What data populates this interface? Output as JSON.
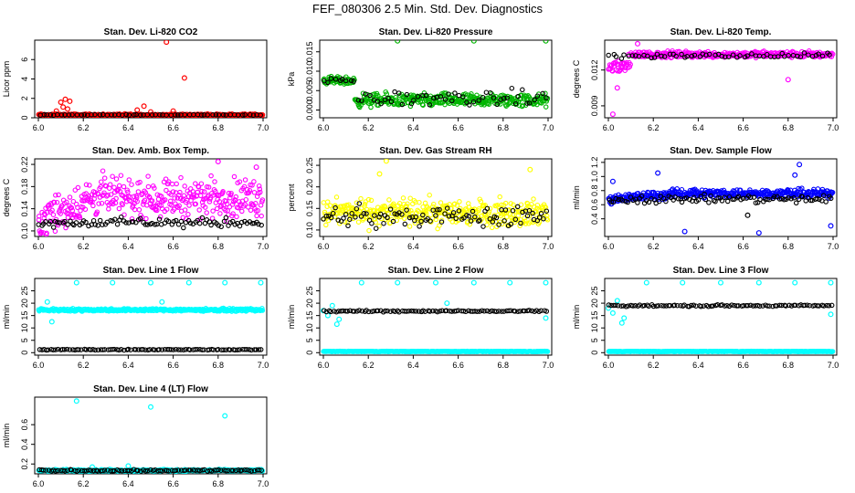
{
  "page": {
    "title": "FEF_080306  2.5 Min. Std. Dev. Diagnostics"
  },
  "chart_data": [
    {
      "type": "scatter",
      "title": "Stan. Dev. Li-820 CO2",
      "ylabel": "Licor ppm",
      "xlim": [
        6.0,
        7.0
      ],
      "ylim": [
        0,
        8
      ],
      "x_ticks": [
        "6.0",
        "6.2",
        "6.4",
        "6.6",
        "6.8",
        "7.0"
      ],
      "y_ticks": [
        {
          "v": 0,
          "label": "0"
        },
        {
          "v": 2,
          "label": "2"
        },
        {
          "v": 4,
          "label": "4"
        },
        {
          "v": 6,
          "label": "6"
        }
      ],
      "series": [
        {
          "name": "red",
          "color": "#ff0000",
          "base": 0.3,
          "noise": 0.15,
          "density": "dense",
          "spikes": [
            {
              "x": 6.1,
              "y": 1.6
            },
            {
              "x": 6.12,
              "y": 1.9
            },
            {
              "x": 6.14,
              "y": 1.7
            },
            {
              "x": 6.11,
              "y": 1.1
            },
            {
              "x": 6.13,
              "y": 0.9
            },
            {
              "x": 6.08,
              "y": 0.7
            },
            {
              "x": 6.47,
              "y": 1.2
            },
            {
              "x": 6.44,
              "y": 0.8
            },
            {
              "x": 6.5,
              "y": 0.6
            },
            {
              "x": 6.57,
              "y": 7.8
            },
            {
              "x": 6.65,
              "y": 4.1
            },
            {
              "x": 6.6,
              "y": 0.7
            }
          ]
        },
        {
          "name": "black",
          "color": "#000000",
          "base": 0.3,
          "noise": 0.05,
          "density": "sparse",
          "spikes": []
        }
      ]
    },
    {
      "type": "scatter",
      "title": "Stan. Dev. Li-820 Pressure",
      "ylabel": "kPa",
      "xlim": [
        6.0,
        7.0
      ],
      "ylim": [
        -0.002,
        0.018
      ],
      "x_ticks": [
        "6.0",
        "6.2",
        "6.4",
        "6.6",
        "6.8",
        "7.0"
      ],
      "y_ticks": [
        {
          "v": 0.0,
          "label": "0.000"
        },
        {
          "v": 0.005,
          "label": "0.005"
        },
        {
          "v": 0.01,
          "label": "0.010"
        },
        {
          "v": 0.015,
          "label": "0.015"
        }
      ],
      "series": [
        {
          "name": "green",
          "color": "#00b400",
          "base": 0.0025,
          "noise": 0.0025,
          "density": "dense",
          "step": {
            "before": 6.14,
            "value": 0.0075,
            "noise": 0.0015
          },
          "spikes": [
            {
              "x": 6.33,
              "y": 0.0178
            },
            {
              "x": 6.67,
              "y": 0.0178
            },
            {
              "x": 6.99,
              "y": 0.0178
            }
          ]
        },
        {
          "name": "black",
          "color": "#000000",
          "base": 0.003,
          "noise": 0.003,
          "density": "sparse",
          "step": {
            "before": 6.14,
            "value": 0.0075,
            "noise": 0.001
          },
          "spikes": []
        }
      ]
    },
    {
      "type": "scatter",
      "title": "Stan. Dev. Li-820 Temp.",
      "ylabel": "degrees C",
      "xlim": [
        6.0,
        7.0
      ],
      "ylim": [
        0.008,
        0.0145
      ],
      "x_ticks": [
        "6.0",
        "6.2",
        "6.4",
        "6.6",
        "6.8",
        "7.0"
      ],
      "y_ticks": [
        {
          "v": 0.009,
          "label": "0.009"
        },
        {
          "v": 0.012,
          "label": "0.012"
        }
      ],
      "series": [
        {
          "name": "magenta",
          "color": "#ff00ff",
          "base": 0.0133,
          "noise": 0.0004,
          "density": "dense",
          "step": {
            "before": 6.1,
            "value": 0.0123,
            "noise": 0.0012
          },
          "spikes": [
            {
              "x": 6.02,
              "y": 0.0083
            },
            {
              "x": 6.13,
              "y": 0.0142
            },
            {
              "x": 6.8,
              "y": 0.0112
            },
            {
              "x": 6.04,
              "y": 0.0105
            }
          ]
        },
        {
          "name": "black",
          "color": "#000000",
          "base": 0.0132,
          "noise": 0.0003,
          "density": "sparse",
          "spikes": []
        }
      ]
    },
    {
      "type": "scatter",
      "title": "Stan. Dev. Amb. Box Temp.",
      "ylabel": "degrees C",
      "xlim": [
        6.0,
        7.0
      ],
      "ylim": [
        0.09,
        0.23
      ],
      "x_ticks": [
        "6.0",
        "6.2",
        "6.4",
        "6.6",
        "6.8",
        "7.0"
      ],
      "y_ticks": [
        {
          "v": 0.1,
          "label": "0.10"
        },
        {
          "v": 0.14,
          "label": "0.14"
        },
        {
          "v": 0.18,
          "label": "0.18"
        },
        {
          "v": 0.22,
          "label": "0.22"
        }
      ],
      "series": [
        {
          "name": "magenta",
          "color": "#ff00ff",
          "base": 0.16,
          "noise": 0.05,
          "density": "dense",
          "ramp": {
            "from": 0.12,
            "to": 0.17,
            "until": 6.3
          },
          "spikes": [
            {
              "x": 6.8,
              "y": 0.225
            },
            {
              "x": 6.97,
              "y": 0.215
            }
          ]
        },
        {
          "name": "black",
          "color": "#000000",
          "base": 0.115,
          "noise": 0.012,
          "density": "medium",
          "spikes": []
        }
      ]
    },
    {
      "type": "scatter",
      "title": "Stan. Dev. Gas Stream RH",
      "ylabel": "percent",
      "xlim": [
        6.0,
        7.0
      ],
      "ylim": [
        0.085,
        0.265
      ],
      "x_ticks": [
        "6.0",
        "6.2",
        "6.4",
        "6.6",
        "6.8",
        "7.0"
      ],
      "y_ticks": [
        {
          "v": 0.1,
          "label": "0.10"
        },
        {
          "v": 0.15,
          "label": "0.15"
        },
        {
          "v": 0.2,
          "label": "0.20"
        },
        {
          "v": 0.25,
          "label": "0.25"
        }
      ],
      "series": [
        {
          "name": "yellow",
          "color": "#ffff00",
          "base": 0.14,
          "noise": 0.045,
          "density": "dense",
          "spikes": [
            {
              "x": 6.28,
              "y": 0.26
            },
            {
              "x": 6.92,
              "y": 0.24
            },
            {
              "x": 6.25,
              "y": 0.23
            }
          ]
        },
        {
          "name": "black",
          "color": "#000000",
          "base": 0.13,
          "noise": 0.035,
          "density": "medium",
          "spikes": []
        }
      ]
    },
    {
      "type": "scatter",
      "title": "Stan. Dev. Sample Flow",
      "ylabel": "ml/min",
      "xlim": [
        6.0,
        7.0
      ],
      "ylim": [
        0.15,
        1.25
      ],
      "x_ticks": [
        "6.0",
        "6.2",
        "6.4",
        "6.6",
        "6.8",
        "7.0"
      ],
      "y_ticks": [
        {
          "v": 0.4,
          "label": "0.4"
        },
        {
          "v": 0.6,
          "label": "0.6"
        },
        {
          "v": 0.8,
          "label": "0.8"
        },
        {
          "v": 1.0,
          "label": "1.0"
        },
        {
          "v": 1.2,
          "label": "1.2"
        }
      ],
      "series": [
        {
          "name": "blue",
          "color": "#0000ff",
          "base": 0.76,
          "noise": 0.09,
          "density": "dense",
          "ramp": {
            "from": 0.68,
            "to": 0.78,
            "until": 6.4
          },
          "spikes": [
            {
              "x": 6.02,
              "y": 0.93
            },
            {
              "x": 6.22,
              "y": 1.05
            },
            {
              "x": 6.85,
              "y": 1.17
            },
            {
              "x": 6.34,
              "y": 0.22
            },
            {
              "x": 6.67,
              "y": 0.2
            },
            {
              "x": 6.99,
              "y": 0.3
            },
            {
              "x": 6.83,
              "y": 1.02
            }
          ]
        },
        {
          "name": "black",
          "color": "#000000",
          "base": 0.68,
          "noise": 0.09,
          "density": "medium",
          "spikes": [
            {
              "x": 6.62,
              "y": 0.45
            }
          ]
        }
      ]
    },
    {
      "type": "scatter",
      "title": "Stan. Dev. Line 1 Flow",
      "ylabel": "ml/min",
      "xlim": [
        6.0,
        7.0
      ],
      "ylim": [
        -1,
        30
      ],
      "x_ticks": [
        "6.0",
        "6.2",
        "6.4",
        "6.6",
        "6.8",
        "7.0"
      ],
      "y_ticks": [
        {
          "v": 0,
          "label": "0"
        },
        {
          "v": 5,
          "label": "5"
        },
        {
          "v": 10,
          "label": "10"
        },
        {
          "v": 15,
          "label": "15"
        },
        {
          "v": 20,
          "label": "20"
        },
        {
          "v": 25,
          "label": "25"
        }
      ],
      "series": [
        {
          "name": "cyan",
          "color": "#00ffff",
          "base": 17.3,
          "noise": 0.8,
          "density": "dense",
          "spikes": [
            {
              "x": 6.04,
              "y": 20.5
            },
            {
              "x": 6.06,
              "y": 12.5
            },
            {
              "x": 6.17,
              "y": 28.3
            },
            {
              "x": 6.33,
              "y": 28.3
            },
            {
              "x": 6.5,
              "y": 28.3
            },
            {
              "x": 6.67,
              "y": 28.3
            },
            {
              "x": 6.83,
              "y": 28.3
            },
            {
              "x": 6.99,
              "y": 28.3
            },
            {
              "x": 6.55,
              "y": 20.5
            }
          ]
        },
        {
          "name": "black",
          "color": "#000000",
          "base": 1.2,
          "noise": 0.25,
          "density": "medium",
          "spikes": []
        }
      ]
    },
    {
      "type": "scatter",
      "title": "Stan. Dev. Line 2 Flow",
      "ylabel": "ml/min",
      "xlim": [
        6.0,
        7.0
      ],
      "ylim": [
        -1,
        30
      ],
      "x_ticks": [
        "6.0",
        "6.2",
        "6.4",
        "6.6",
        "6.8",
        "7.0"
      ],
      "y_ticks": [
        {
          "v": 0,
          "label": "0"
        },
        {
          "v": 5,
          "label": "5"
        },
        {
          "v": 10,
          "label": "10"
        },
        {
          "v": 15,
          "label": "15"
        },
        {
          "v": 20,
          "label": "20"
        },
        {
          "v": 25,
          "label": "25"
        }
      ],
      "series": [
        {
          "name": "cyan-low",
          "color": "#00ffff",
          "base": 0.5,
          "noise": 0.15,
          "density": "dense",
          "spikes": [
            {
              "x": 6.0,
              "y": 17.0
            },
            {
              "x": 6.02,
              "y": 15.0
            },
            {
              "x": 6.04,
              "y": 19.0
            },
            {
              "x": 6.06,
              "y": 11.5
            },
            {
              "x": 6.07,
              "y": 13.5
            },
            {
              "x": 6.17,
              "y": 28.3
            },
            {
              "x": 6.33,
              "y": 28.3
            },
            {
              "x": 6.5,
              "y": 28.3
            },
            {
              "x": 6.67,
              "y": 28.3
            },
            {
              "x": 6.83,
              "y": 28.3
            },
            {
              "x": 6.99,
              "y": 28.3
            },
            {
              "x": 6.55,
              "y": 20.0
            },
            {
              "x": 6.99,
              "y": 14.0
            }
          ]
        },
        {
          "name": "black",
          "color": "#000000",
          "base": 16.8,
          "noise": 0.5,
          "density": "medium",
          "spikes": []
        }
      ]
    },
    {
      "type": "scatter",
      "title": "Stan. Dev. Line 3 Flow",
      "ylabel": "ml/min",
      "xlim": [
        6.0,
        7.0
      ],
      "ylim": [
        -1,
        30
      ],
      "x_ticks": [
        "6.0",
        "6.2",
        "6.4",
        "6.6",
        "6.8",
        "7.0"
      ],
      "y_ticks": [
        {
          "v": 0,
          "label": "0"
        },
        {
          "v": 5,
          "label": "5"
        },
        {
          "v": 10,
          "label": "10"
        },
        {
          "v": 15,
          "label": "15"
        },
        {
          "v": 20,
          "label": "20"
        },
        {
          "v": 25,
          "label": "25"
        }
      ],
      "series": [
        {
          "name": "cyan-low",
          "color": "#00ffff",
          "base": 0.5,
          "noise": 0.15,
          "density": "dense",
          "spikes": [
            {
              "x": 6.0,
              "y": 18.0
            },
            {
              "x": 6.02,
              "y": 16.0
            },
            {
              "x": 6.04,
              "y": 21.0
            },
            {
              "x": 6.06,
              "y": 12.0
            },
            {
              "x": 6.07,
              "y": 14.0
            },
            {
              "x": 6.17,
              "y": 28.3
            },
            {
              "x": 6.33,
              "y": 28.3
            },
            {
              "x": 6.5,
              "y": 28.3
            },
            {
              "x": 6.67,
              "y": 28.3
            },
            {
              "x": 6.83,
              "y": 28.3
            },
            {
              "x": 6.99,
              "y": 28.3
            },
            {
              "x": 6.99,
              "y": 15.5
            }
          ]
        },
        {
          "name": "black",
          "color": "#000000",
          "base": 19.0,
          "noise": 0.5,
          "density": "medium",
          "spikes": []
        }
      ]
    },
    {
      "type": "scatter",
      "title": "Stan. Dev. Line 4 (LT) Flow",
      "ylabel": "ml/min",
      "xlim": [
        6.0,
        7.0
      ],
      "ylim": [
        0.1,
        0.88
      ],
      "x_ticks": [
        "6.0",
        "6.2",
        "6.4",
        "6.6",
        "6.8",
        "7.0"
      ],
      "y_ticks": [
        {
          "v": 0.2,
          "label": "0.2"
        },
        {
          "v": 0.4,
          "label": "0.4"
        },
        {
          "v": 0.6,
          "label": "0.6"
        }
      ],
      "series": [
        {
          "name": "cyan",
          "color": "#00ffff",
          "base": 0.135,
          "noise": 0.015,
          "density": "dense",
          "spikes": [
            {
              "x": 6.17,
              "y": 0.84
            },
            {
              "x": 6.5,
              "y": 0.78
            },
            {
              "x": 6.83,
              "y": 0.69
            },
            {
              "x": 6.24,
              "y": 0.17
            },
            {
              "x": 6.4,
              "y": 0.18
            }
          ]
        },
        {
          "name": "black",
          "color": "#000000",
          "base": 0.135,
          "noise": 0.012,
          "density": "medium",
          "spikes": []
        }
      ]
    }
  ]
}
